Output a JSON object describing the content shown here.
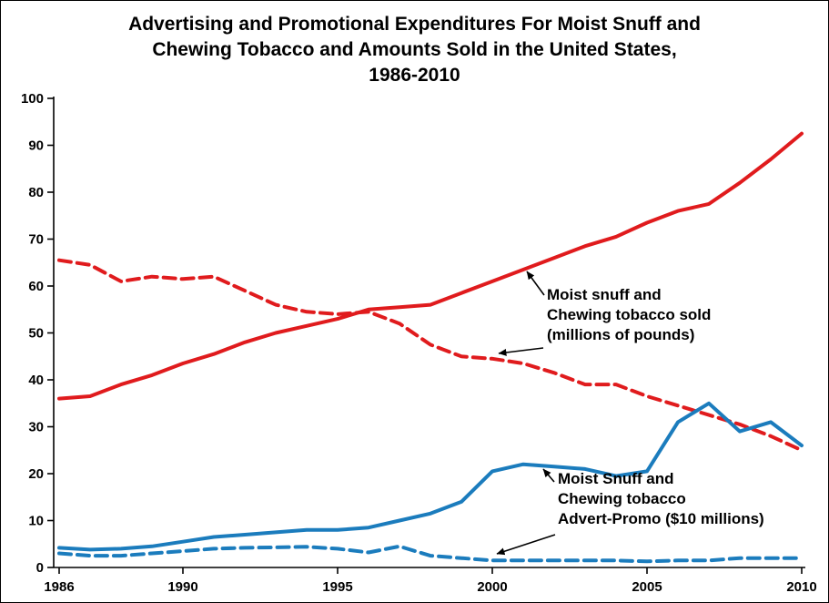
{
  "chart_data": {
    "type": "line",
    "title": "Advertising and Promotional Expenditures For Moist Snuff and\nChewing Tobacco  and Amounts Sold in the United States,\n1986-2010",
    "xlabel": "",
    "ylabel": "",
    "xlim": [
      1986,
      2010
    ],
    "ylim": [
      0,
      100
    ],
    "grid": false,
    "legend_position": "none",
    "x": [
      1986,
      1987,
      1988,
      1989,
      1990,
      1991,
      1992,
      1993,
      1994,
      1995,
      1996,
      1997,
      1998,
      1999,
      2000,
      2001,
      2002,
      2003,
      2004,
      2005,
      2006,
      2007,
      2008,
      2009,
      2010
    ],
    "x_tick_labels": [
      1986,
      1990,
      1995,
      2000,
      2005,
      2010
    ],
    "y_ticks": [
      0,
      10,
      20,
      30,
      40,
      50,
      60,
      70,
      80,
      90,
      100
    ],
    "colors": {
      "red": "#e01b1d",
      "blue": "#1b7cbd",
      "axis": "#000000"
    },
    "series": [
      {
        "name": "Moist snuff sold (millions of pounds)",
        "color": "#e01b1d",
        "style": "solid",
        "values": [
          36,
          36.5,
          39,
          41,
          43.5,
          45.5,
          48,
          50,
          51.5,
          53,
          55,
          55.5,
          56,
          58.5,
          61,
          63.5,
          66,
          68.5,
          70.5,
          73.5,
          76,
          77.5,
          82,
          87,
          92.5
        ]
      },
      {
        "name": "Chewing tobacco sold (millions of pounds)",
        "color": "#e01b1d",
        "style": "dashed",
        "values": [
          65.5,
          64.5,
          61,
          62,
          61.5,
          62,
          59,
          56,
          54.5,
          54,
          54.5,
          52,
          47.5,
          45,
          44.5,
          43.5,
          41.5,
          39,
          39,
          36.5,
          34.5,
          32.5,
          30.5,
          28,
          25
        ]
      },
      {
        "name": "Moist snuff Advert-Promo ($10 millions)",
        "color": "#1b7cbd",
        "style": "solid",
        "values": [
          4.2,
          3.8,
          4,
          4.5,
          5.5,
          6.5,
          7,
          7.5,
          8,
          8,
          8.5,
          10,
          11.5,
          14,
          20.5,
          22,
          21.5,
          21,
          19.5,
          20.5,
          31,
          35,
          29,
          31,
          26
        ]
      },
      {
        "name": "Chewing tobacco Advert-Promo ($10 millions)",
        "color": "#1b7cbd",
        "style": "dashed",
        "values": [
          3,
          2.5,
          2.5,
          3,
          3.5,
          4,
          4.2,
          4.3,
          4.4,
          4,
          3.2,
          4.5,
          2.5,
          2,
          1.5,
          1.5,
          1.5,
          1.5,
          1.5,
          1.3,
          1.5,
          1.5,
          2,
          2,
          2
        ]
      }
    ],
    "annotations": [
      {
        "text": "Moist snuff and\nChewing tobacco sold\n(millions of pounds)"
      },
      {
        "text": "Moist Snuff and\nChewing tobacco\nAdvert-Promo ($10 millions)"
      }
    ]
  }
}
